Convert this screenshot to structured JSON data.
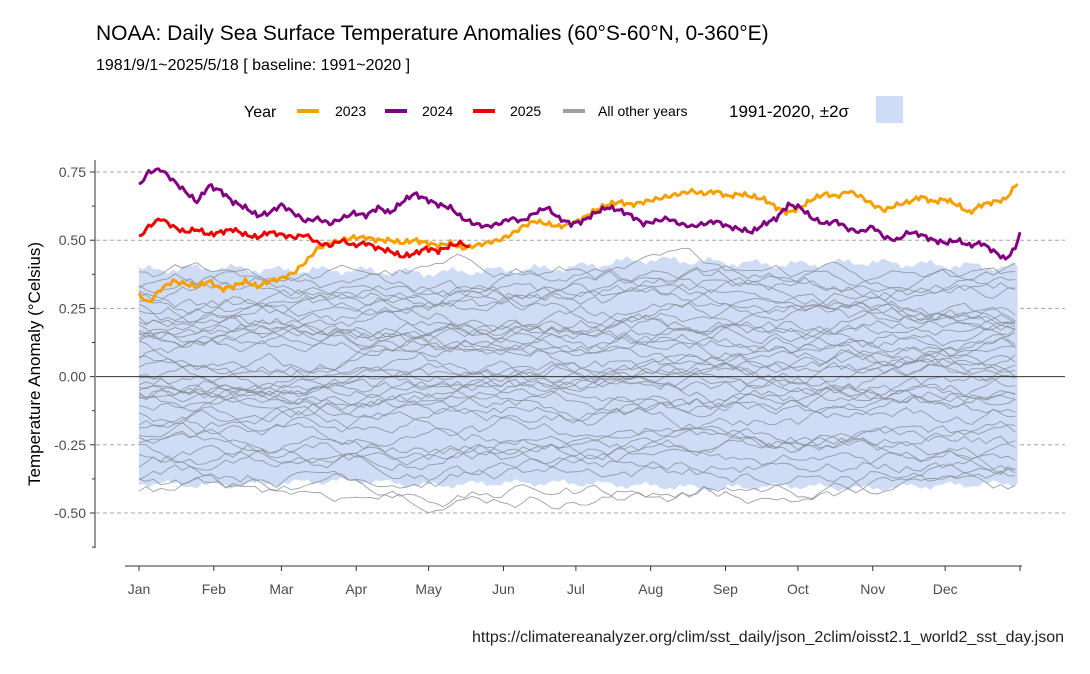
{
  "title": "NOAA: Daily Sea Surface Temperature Anomalies (60°S-60°N, 0-360°E)",
  "subtitle": "1981/9/1~2025/5/18   [ baseline: 1991~2020 ]",
  "source": "https://climatereanalyzer.org/clim/sst_daily/json_2clim/oisst2.1_world2_sst_day.json",
  "legend": {
    "title": "Year",
    "band_label": "1991-2020, ±2σ"
  },
  "colors": {
    "y2023": "#f5a000",
    "y2024": "#800080",
    "y2025": "#ee0000",
    "other_years": "#8a8f99",
    "band": "#cfdcf6",
    "legend_other": "#a0a0a0"
  },
  "chart_data": {
    "type": "line",
    "xlabel": "",
    "ylabel": "Temperature Anomaly (°Celsius)",
    "x_ticks": [
      "Jan",
      "Feb",
      "Mar",
      "Apr",
      "May",
      "Jun",
      "Jul",
      "Aug",
      "Sep",
      "Oct",
      "Nov",
      "Dec"
    ],
    "x_tick_days": [
      1,
      32,
      60,
      91,
      121,
      152,
      182,
      213,
      244,
      274,
      305,
      335
    ],
    "xlim": [
      1,
      366
    ],
    "ylim": [
      -0.65,
      0.77
    ],
    "y_ticks": [
      -0.5,
      -0.25,
      0.0,
      0.25,
      0.5,
      0.75
    ],
    "y_tick_labels": [
      "-0.50",
      "-0.25",
      "0.00",
      "0.25",
      "0.50",
      "0.75"
    ],
    "grid": "horizontal dashed",
    "band": {
      "name": "1991-2020, ±2σ",
      "days": [
        1,
        30,
        60,
        90,
        120,
        150,
        180,
        210,
        240,
        270,
        300,
        330,
        366
      ],
      "upper": [
        0.39,
        0.4,
        0.39,
        0.39,
        0.38,
        0.39,
        0.4,
        0.43,
        0.42,
        0.41,
        0.42,
        0.41,
        0.4
      ],
      "lower": [
        -0.39,
        -0.4,
        -0.39,
        -0.38,
        -0.4,
        -0.39,
        -0.39,
        -0.4,
        -0.41,
        -0.4,
        -0.41,
        -0.4,
        -0.39
      ]
    },
    "series": [
      {
        "name": "2023",
        "days": [
          1,
          5,
          10,
          15,
          20,
          25,
          30,
          35,
          40,
          45,
          50,
          55,
          60,
          65,
          70,
          75,
          80,
          85,
          90,
          95,
          100,
          105,
          110,
          115,
          120,
          125,
          130,
          135,
          140,
          145,
          150,
          155,
          160,
          165,
          170,
          175,
          180,
          185,
          190,
          195,
          200,
          205,
          210,
          215,
          220,
          225,
          230,
          235,
          240,
          245,
          250,
          255,
          260,
          265,
          270,
          275,
          280,
          285,
          290,
          295,
          300,
          305,
          310,
          315,
          320,
          325,
          330,
          335,
          340,
          345,
          350,
          355,
          360,
          365
        ],
        "values": [
          0.3,
          0.27,
          0.32,
          0.35,
          0.34,
          0.33,
          0.35,
          0.32,
          0.33,
          0.35,
          0.33,
          0.35,
          0.36,
          0.38,
          0.42,
          0.47,
          0.49,
          0.5,
          0.51,
          0.51,
          0.5,
          0.5,
          0.49,
          0.5,
          0.49,
          0.48,
          0.49,
          0.47,
          0.48,
          0.49,
          0.5,
          0.52,
          0.55,
          0.57,
          0.56,
          0.55,
          0.56,
          0.58,
          0.61,
          0.63,
          0.64,
          0.63,
          0.64,
          0.65,
          0.66,
          0.67,
          0.68,
          0.67,
          0.68,
          0.66,
          0.67,
          0.66,
          0.65,
          0.62,
          0.6,
          0.62,
          0.65,
          0.67,
          0.66,
          0.68,
          0.66,
          0.63,
          0.61,
          0.63,
          0.64,
          0.66,
          0.64,
          0.65,
          0.63,
          0.6,
          0.63,
          0.64,
          0.65,
          0.71
        ]
      },
      {
        "name": "2024",
        "days": [
          1,
          5,
          10,
          15,
          20,
          25,
          30,
          35,
          40,
          45,
          50,
          55,
          60,
          65,
          70,
          75,
          80,
          85,
          90,
          95,
          100,
          105,
          110,
          115,
          120,
          125,
          130,
          135,
          140,
          145,
          150,
          155,
          160,
          165,
          170,
          175,
          180,
          185,
          190,
          195,
          200,
          205,
          210,
          215,
          220,
          225,
          230,
          235,
          240,
          245,
          250,
          255,
          260,
          265,
          270,
          275,
          280,
          285,
          290,
          295,
          300,
          305,
          310,
          315,
          320,
          325,
          330,
          335,
          340,
          345,
          350,
          355,
          360,
          364,
          366
        ],
        "values": [
          0.7,
          0.75,
          0.76,
          0.72,
          0.68,
          0.64,
          0.7,
          0.68,
          0.64,
          0.62,
          0.59,
          0.6,
          0.63,
          0.6,
          0.57,
          0.58,
          0.56,
          0.58,
          0.6,
          0.59,
          0.62,
          0.6,
          0.64,
          0.67,
          0.65,
          0.63,
          0.62,
          0.58,
          0.56,
          0.55,
          0.56,
          0.58,
          0.57,
          0.6,
          0.62,
          0.58,
          0.56,
          0.57,
          0.6,
          0.62,
          0.61,
          0.59,
          0.56,
          0.57,
          0.58,
          0.56,
          0.55,
          0.56,
          0.57,
          0.55,
          0.54,
          0.53,
          0.56,
          0.58,
          0.63,
          0.62,
          0.58,
          0.56,
          0.57,
          0.54,
          0.53,
          0.55,
          0.51,
          0.5,
          0.53,
          0.52,
          0.5,
          0.49,
          0.5,
          0.48,
          0.49,
          0.46,
          0.43,
          0.47,
          0.53
        ]
      },
      {
        "name": "2025",
        "days": [
          1,
          5,
          10,
          15,
          20,
          25,
          30,
          35,
          40,
          45,
          50,
          55,
          60,
          65,
          70,
          75,
          80,
          85,
          90,
          95,
          100,
          105,
          110,
          115,
          120,
          125,
          130,
          135,
          138
        ],
        "values": [
          0.51,
          0.55,
          0.58,
          0.55,
          0.53,
          0.54,
          0.52,
          0.53,
          0.54,
          0.52,
          0.51,
          0.53,
          0.52,
          0.51,
          0.52,
          0.49,
          0.48,
          0.5,
          0.48,
          0.49,
          0.47,
          0.46,
          0.44,
          0.45,
          0.47,
          0.46,
          0.48,
          0.49,
          0.47
        ]
      }
    ],
    "other_years": {
      "name": "All other years",
      "count": 42,
      "range": [
        -0.54,
        0.47
      ]
    }
  }
}
